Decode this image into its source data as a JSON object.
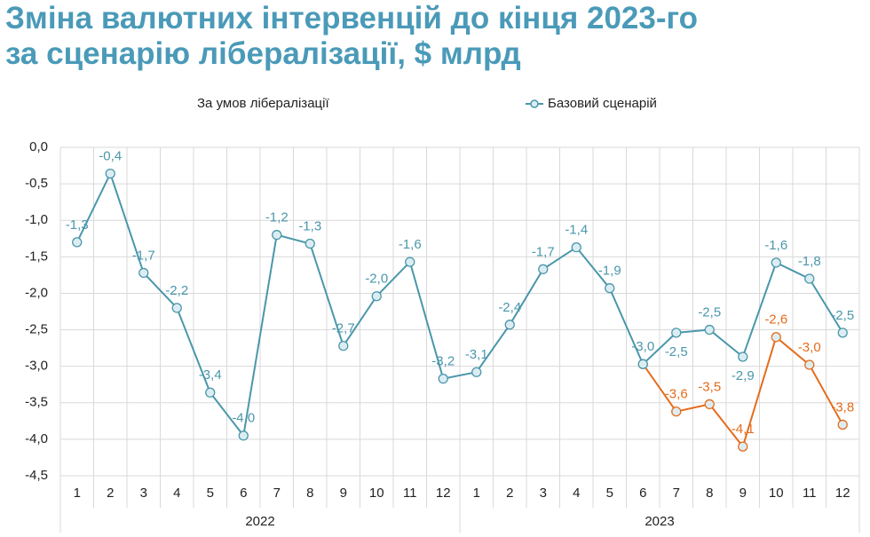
{
  "chart_data": {
    "type": "line",
    "title": [
      "Зміна валютних інтервенцій до кінця 2023-го",
      "за сценарію лібералізації, $ млрд"
    ],
    "categories": [
      "1",
      "2",
      "3",
      "4",
      "5",
      "6",
      "7",
      "8",
      "9",
      "10",
      "11",
      "12",
      "1",
      "2",
      "3",
      "4",
      "5",
      "6",
      "7",
      "8",
      "9",
      "10",
      "11",
      "12"
    ],
    "x_groups": [
      "2022",
      "2023"
    ],
    "series": [
      {
        "name": "За умов лібералізації",
        "color": "#e46c1c",
        "values": [
          null,
          null,
          null,
          null,
          null,
          null,
          null,
          null,
          null,
          null,
          null,
          null,
          null,
          null,
          null,
          null,
          null,
          -2.97,
          -3.62,
          -3.52,
          -4.1,
          -2.6,
          -2.98,
          -3.8
        ],
        "value_labels": [
          null,
          null,
          null,
          null,
          null,
          null,
          null,
          null,
          null,
          null,
          null,
          null,
          null,
          null,
          null,
          null,
          null,
          null,
          "-3,6",
          "-3,5",
          "-4,1",
          "-2,6",
          "-3,0",
          "-3,8"
        ]
      },
      {
        "name": "Базовий сценарій",
        "color": "#4a97ab",
        "values": [
          -1.3,
          -0.36,
          -1.72,
          -2.2,
          -3.36,
          -3.95,
          -1.2,
          -1.32,
          -2.72,
          -2.04,
          -1.57,
          -3.17,
          -3.08,
          -2.43,
          -1.67,
          -1.37,
          -1.93,
          -2.97,
          -2.54,
          -2.5,
          -2.87,
          -1.58,
          -1.8,
          -2.54
        ],
        "value_labels": [
          "-1,3",
          "-0,4",
          "-1,7",
          "-2,2",
          "-3,4",
          "-4,0",
          "-1,2",
          "-1,3",
          "-2,7",
          "-2,0",
          "-1,6",
          "-3,2",
          "-3,1",
          "-2,4",
          "-1,7",
          "-1,4",
          "-1,9",
          "-3,0",
          "-2,5",
          "-2,5",
          "-2,9",
          "-1,6",
          "-1,8",
          "-2,5"
        ]
      }
    ],
    "ylim": [
      -4.5,
      0
    ],
    "yticks": [
      {
        "value": 0,
        "label": "0,0"
      },
      {
        "value": -0.5,
        "label": "-0,5"
      },
      {
        "value": -1,
        "label": "-1,0"
      },
      {
        "value": -1.5,
        "label": "-1,5"
      },
      {
        "value": -2,
        "label": "-2,0"
      },
      {
        "value": -2.5,
        "label": "-2,5"
      },
      {
        "value": -3,
        "label": "-3,0"
      },
      {
        "value": -3.5,
        "label": "-3,5"
      },
      {
        "value": -4,
        "label": "-4,0"
      },
      {
        "value": -4.5,
        "label": "-4,5"
      }
    ],
    "grid": true
  }
}
